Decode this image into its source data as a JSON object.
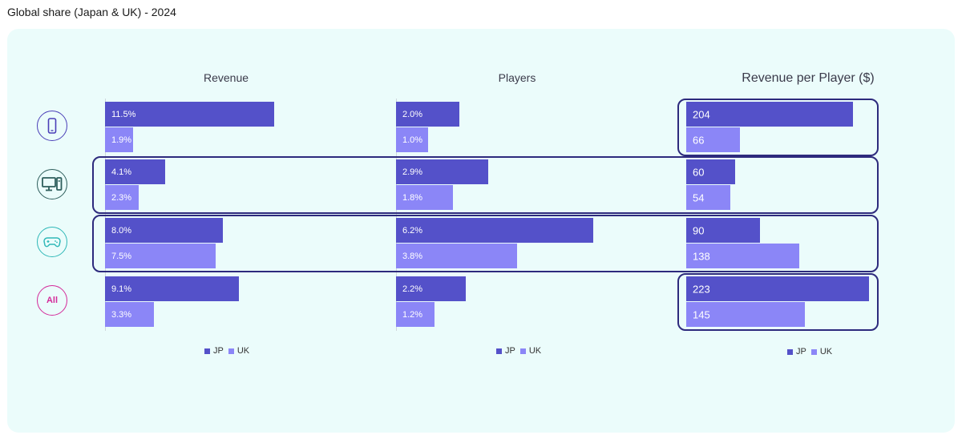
{
  "page_title": "Global share (Japan & UK) - 2024",
  "colors": {
    "jp": "#5451c9",
    "uk": "#8b86f7",
    "highlight": "#2d2a7d",
    "background": "#ebfcfb"
  },
  "icons": {
    "mobile": {
      "name": "mobile-phone-icon",
      "color": "#4b3fb8"
    },
    "pc": {
      "name": "desktop-pc-icon",
      "color": "#2e5e5c"
    },
    "console": {
      "name": "gamepad-icon",
      "color": "#2fb8b8"
    },
    "all": {
      "name": "all-badge",
      "label": "All",
      "color": "#d42a9a"
    }
  },
  "legend": {
    "jp": "JP",
    "uk": "UK"
  },
  "chart_data": [
    {
      "type": "bar",
      "orientation": "horizontal",
      "title": "Revenue",
      "categories": [
        "Mobile",
        "PC",
        "Console",
        "All"
      ],
      "series": [
        {
          "name": "JP",
          "values": [
            11.5,
            4.1,
            8.0,
            9.1
          ],
          "labels": [
            "11.5%",
            "4.1%",
            "8.0%",
            "9.1%"
          ]
        },
        {
          "name": "UK",
          "values": [
            1.9,
            2.3,
            7.5,
            3.3
          ],
          "labels": [
            "1.9%",
            "2.3%",
            "7.5%",
            "3.3%"
          ]
        }
      ],
      "xlim": [
        0,
        15
      ]
    },
    {
      "type": "bar",
      "orientation": "horizontal",
      "title": "Players",
      "categories": [
        "Mobile",
        "PC",
        "Console",
        "All"
      ],
      "series": [
        {
          "name": "JP",
          "values": [
            2.0,
            2.9,
            6.2,
            2.2
          ],
          "labels": [
            "2.0%",
            "2.9%",
            "6.2%",
            "2.2%"
          ]
        },
        {
          "name": "UK",
          "values": [
            1.0,
            1.8,
            3.8,
            1.2
          ],
          "labels": [
            "1.0%",
            "1.8%",
            "3.8%",
            "1.2%"
          ]
        }
      ],
      "xlim": [
        0,
        6.6
      ]
    },
    {
      "type": "bar",
      "orientation": "horizontal",
      "title": "Revenue per Player ($)",
      "categories": [
        "Mobile",
        "PC",
        "Console",
        "All"
      ],
      "series": [
        {
          "name": "JP",
          "values": [
            204,
            60,
            90,
            223
          ],
          "labels": [
            "204",
            "60",
            "90",
            "223"
          ]
        },
        {
          "name": "UK",
          "values": [
            66,
            54,
            138,
            145
          ],
          "labels": [
            "66",
            "54",
            "138",
            "145"
          ]
        }
      ],
      "xlim": [
        0,
        235
      ]
    }
  ]
}
